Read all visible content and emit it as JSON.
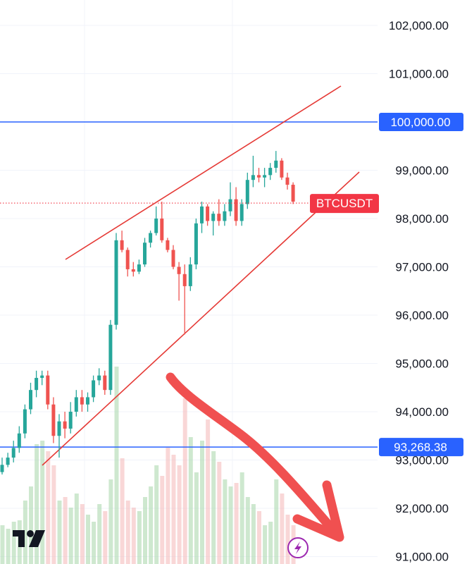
{
  "chart_data": {
    "type": "candlestick",
    "symbol": "BTCUSDT",
    "ylim": [
      90900,
      102550
    ],
    "y_ticks": [
      {
        "value": 102000,
        "label": "102,000.00"
      },
      {
        "value": 101000,
        "label": "101,000.00"
      },
      {
        "value": 100000,
        "label": "100,000.00"
      },
      {
        "value": 99000,
        "label": "99,000.00"
      },
      {
        "value": 98000,
        "label": "98,000.00"
      },
      {
        "value": 97000,
        "label": "97,000.00"
      },
      {
        "value": 96000,
        "label": "96,000.00"
      },
      {
        "value": 95000,
        "label": "95,000.00"
      },
      {
        "value": 94000,
        "label": "94,000.00"
      },
      {
        "value": 93000,
        "label": "93,000.00"
      },
      {
        "value": 92000,
        "label": "92,000.00"
      },
      {
        "value": 91000,
        "label": "91,000.00"
      }
    ],
    "last_price": 98320,
    "horizontal_levels": [
      {
        "value": 100000,
        "label": "100,000.00"
      },
      {
        "value": 93268.38,
        "label": "93,268.38"
      }
    ],
    "candles": [
      [
        92750,
        93050,
        92700,
        92900
      ],
      [
        92900,
        93150,
        92850,
        93050
      ],
      [
        93050,
        93400,
        92950,
        93250
      ],
      [
        93250,
        93700,
        93150,
        93550
      ],
      [
        93550,
        94150,
        93450,
        94050
      ],
      [
        94050,
        94600,
        93950,
        94450
      ],
      [
        94450,
        94850,
        94300,
        94700
      ],
      [
        94700,
        94850,
        94550,
        94750
      ],
      [
        94750,
        94850,
        94050,
        94150
      ],
      [
        94150,
        94300,
        93350,
        93500
      ],
      [
        93500,
        93950,
        93050,
        93800
      ],
      [
        93800,
        94000,
        93450,
        93650
      ],
      [
        93650,
        94200,
        93550,
        94000
      ],
      [
        94000,
        94450,
        93900,
        94300
      ],
      [
        94300,
        94450,
        94000,
        94150
      ],
      [
        94150,
        94400,
        94000,
        94300
      ],
      [
        94300,
        94750,
        94200,
        94650
      ],
      [
        94650,
        94900,
        94550,
        94750
      ],
      [
        94750,
        94850,
        94350,
        94450
      ],
      [
        94450,
        95900,
        94350,
        95800
      ],
      [
        95800,
        97700,
        95700,
        97550
      ],
      [
        97550,
        97750,
        97300,
        97350
      ],
      [
        97350,
        97400,
        96800,
        96950
      ],
      [
        96950,
        97100,
        96800,
        96900
      ],
      [
        96900,
        97150,
        96850,
        97050
      ],
      [
        97050,
        97600,
        97000,
        97500
      ],
      [
        97500,
        97750,
        97400,
        97700
      ],
      [
        97700,
        98250,
        97650,
        98000
      ],
      [
        98000,
        98350,
        97500,
        97550
      ],
      [
        97550,
        97600,
        97300,
        97350
      ],
      [
        97350,
        97450,
        96950,
        97000
      ],
      [
        97000,
        97100,
        96300,
        96850
      ],
      [
        96850,
        97050,
        95600,
        96600
      ],
      [
        96600,
        97200,
        96500,
        97050
      ],
      [
        97050,
        98000,
        96950,
        97900
      ],
      [
        97900,
        98350,
        97700,
        98250
      ],
      [
        98250,
        98300,
        97850,
        97950
      ],
      [
        97950,
        98150,
        97650,
        98100
      ],
      [
        98100,
        98400,
        97850,
        97950
      ],
      [
        97950,
        98300,
        97850,
        98150
      ],
      [
        98150,
        98750,
        98050,
        98400
      ],
      [
        98400,
        98650,
        97850,
        97950
      ],
      [
        97950,
        98400,
        97850,
        98300
      ],
      [
        98300,
        98950,
        98200,
        98800
      ],
      [
        98800,
        99300,
        98650,
        98900
      ],
      [
        98900,
        99050,
        98750,
        98850
      ],
      [
        98850,
        99050,
        98650,
        98900
      ],
      [
        98900,
        99150,
        98800,
        99050
      ],
      [
        99050,
        99400,
        98950,
        99200
      ],
      [
        99200,
        99250,
        98800,
        98850
      ],
      [
        98850,
        98950,
        98600,
        98700
      ],
      [
        98700,
        98750,
        98300,
        98350
      ]
    ],
    "volumes": [
      55,
      50,
      60,
      62,
      90,
      110,
      170,
      175,
      160,
      140,
      90,
      95,
      80,
      100,
      85,
      70,
      60,
      85,
      75,
      120,
      280,
      150,
      90,
      80,
      75,
      95,
      110,
      140,
      125,
      165,
      155,
      140,
      235,
      180,
      130,
      175,
      205,
      160,
      145,
      120,
      110,
      115,
      130,
      95,
      85,
      75,
      55,
      60,
      120,
      100,
      70,
      55
    ],
    "colors": {
      "up": "#26a69a",
      "down": "#ef5350",
      "up_volume": "#a5d6a7",
      "down_volume": "#f4b6b6",
      "level_line": "#2962ff",
      "channel": "#e53935",
      "arrow": "#f05050",
      "last_price": "#f23645",
      "grid": "#f0f3fa"
    }
  },
  "logo": {
    "text": "TV"
  },
  "flash_button": {
    "icon": "lightning-icon"
  }
}
